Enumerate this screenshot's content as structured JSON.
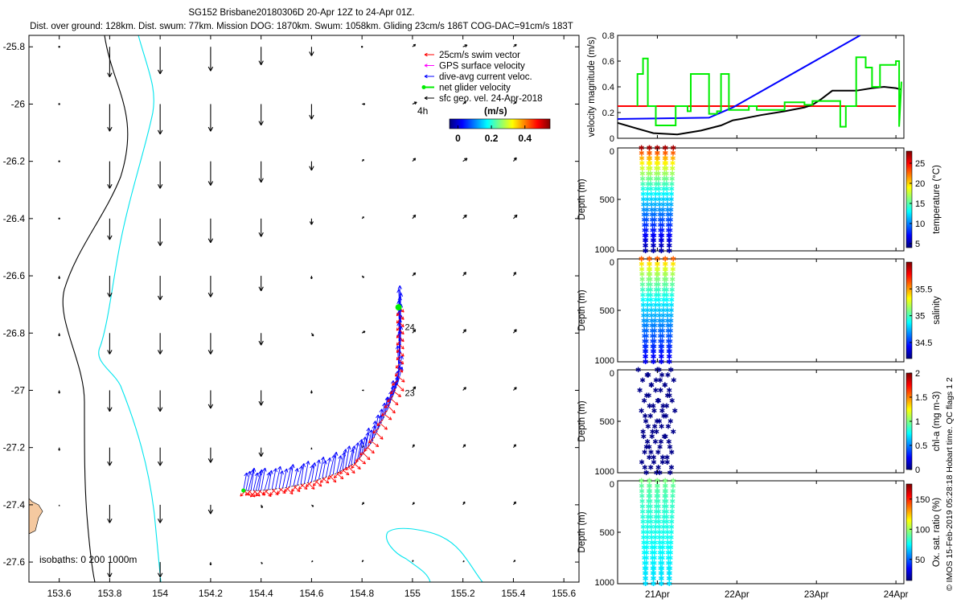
{
  "header": {
    "title": "SG152 Brisbane20180306D 20-Apr 12Z to 24-Apr 01Z.",
    "subtitle": "Dist. over ground: 128km. Dist. swum: 77km. Mission DOG: 1870km. Swum: 1058km. Gliding 23cm/s 186T COG-DAC=91cm/s 183T"
  },
  "credit": "© IMOS 15-Feb-2019 05:28:18 Hobart time. QC flags 1  2",
  "colors": {
    "swim": "#ff0000",
    "gps": "#ff00ff",
    "dac": "#0000ff",
    "net": "#00ee00",
    "sfc": "#000000",
    "isobath_200": "#00e5ee",
    "isobath_1000": "#000000",
    "land": "#f5c9a0"
  },
  "chart_data": [
    {
      "type": "map-quiver",
      "title": "Glider track and velocities",
      "xlim": [
        153.48,
        155.66
      ],
      "ylim": [
        -27.67,
        -25.76
      ],
      "x_ticks": [
        153.6,
        153.8,
        154,
        154.2,
        154.4,
        154.6,
        154.8,
        155,
        155.2,
        155.4,
        155.6
      ],
      "y_ticks": [
        -25.8,
        -26,
        -26.2,
        -26.4,
        -26.6,
        -26.8,
        -27,
        -27.2,
        -27.4,
        -27.6
      ],
      "x_tick_labels": [
        "153.6",
        "153.8",
        "154",
        "154.2",
        "154.4",
        "154.6",
        "154.8",
        "155",
        "155.2",
        "155.4",
        "155.6"
      ],
      "y_tick_labels": [
        "-25.8",
        "-26",
        "-26.2",
        "-26.4",
        "-26.6",
        "-26.8",
        "-27",
        "-27.2",
        "-27.4",
        "-27.6"
      ],
      "legend": [
        {
          "label": "25cm/s swim vector",
          "color": "#ff0000"
        },
        {
          "label": "GPS surface velocity",
          "color": "#ff00ff"
        },
        {
          "label": "dive-avg current veloc.",
          "color": "#0000ff"
        },
        {
          "label": "net glider velocity",
          "color": "#00ee00"
        },
        {
          "label": "sfc geo. vel. 24-Apr-2018",
          "color": "#000000"
        }
      ],
      "scale_label": "4h",
      "colorbar": {
        "label": "(m/s)",
        "ticks": [
          0,
          0.2,
          0.4
        ],
        "tick_labels": [
          "0",
          "0.2",
          "0.4"
        ],
        "range": [
          -0.05,
          0.55
        ]
      },
      "isobath_label": "isobaths: 0   200  1000m",
      "track": {
        "lon": [
          154.33,
          154.4,
          154.5,
          154.6,
          154.7,
          154.78,
          154.84,
          154.9,
          154.94,
          154.95,
          154.95,
          154.95
        ],
        "lat": [
          -27.35,
          -27.35,
          -27.34,
          -27.32,
          -27.29,
          -27.25,
          -27.18,
          -27.07,
          -26.98,
          -26.88,
          -26.79,
          -26.7
        ]
      },
      "day_labels": [
        {
          "text": "24",
          "lon": 154.97,
          "lat": -26.79
        },
        {
          "text": "23",
          "lon": 154.97,
          "lat": -27.02
        }
      ],
      "current_grid": {
        "lon": [
          153.6,
          153.8,
          154.0,
          154.2,
          154.4,
          154.6,
          154.8,
          155.0,
          155.2,
          155.4
        ],
        "lat": [
          -25.8,
          -26.0,
          -26.2,
          -26.4,
          -26.6,
          -26.8,
          -27.0,
          -27.2,
          -27.4,
          -27.6
        ],
        "u": [
          [
            0.0,
            0.0,
            0.0,
            0.0,
            0.0,
            0.0,
            0.0,
            0.05,
            0.07,
            0.05
          ],
          [
            0.0,
            0.0,
            0.0,
            0.0,
            0.0,
            0.0,
            0.05,
            0.07,
            0.05,
            0.05
          ],
          [
            0.0,
            0.0,
            0.0,
            0.0,
            0.0,
            0.0,
            0.03,
            0.05,
            0.07,
            0.05
          ],
          [
            0.0,
            0.0,
            0.0,
            0.0,
            0.0,
            0.0,
            0.03,
            0.05,
            0.06,
            0.06
          ],
          [
            0.0,
            0.0,
            0.0,
            0.0,
            0.0,
            0.0,
            0.03,
            0.05,
            0.05,
            0.04
          ],
          [
            0.0,
            0.0,
            0.0,
            0.0,
            0.0,
            0.03,
            0.05,
            0.05,
            0.05,
            0.05
          ],
          [
            0.0,
            0.0,
            0.0,
            0.0,
            0.0,
            0.0,
            0.03,
            0.05,
            0.05,
            0.05
          ],
          [
            0.0,
            0.0,
            0.0,
            0.0,
            0.0,
            0.0,
            0.03,
            0.03,
            0.04,
            0.04
          ],
          [
            0.0,
            0.0,
            0.0,
            0.0,
            0.02,
            0.03,
            0.03,
            0.03,
            0.03,
            0.04
          ],
          [
            0.0,
            0.0,
            0.0,
            0.0,
            0.02,
            0.02,
            0.02,
            0.01,
            0.02,
            0.03
          ]
        ],
        "v": [
          [
            0.0,
            -0.5,
            -0.45,
            -0.4,
            -0.3,
            -0.15,
            0.0,
            0.04,
            0.03,
            0.04
          ],
          [
            0.0,
            -0.45,
            -0.5,
            -0.45,
            -0.35,
            -0.25,
            0.0,
            0.03,
            0.04,
            0.04
          ],
          [
            0.0,
            -0.45,
            -0.45,
            -0.4,
            -0.35,
            -0.15,
            0.03,
            0.05,
            0.05,
            0.06
          ],
          [
            0.0,
            -0.35,
            -0.45,
            -0.4,
            -0.3,
            -0.1,
            0.03,
            0.06,
            0.06,
            0.06
          ],
          [
            -0.05,
            -0.35,
            -0.4,
            -0.35,
            -0.25,
            -0.05,
            -0.03,
            0.05,
            0.06,
            0.06
          ],
          [
            -0.05,
            -0.35,
            -0.35,
            -0.35,
            -0.2,
            -0.05,
            0.03,
            0.06,
            0.06,
            0.06
          ],
          [
            -0.05,
            -0.35,
            -0.35,
            -0.3,
            -0.25,
            -0.05,
            0.0,
            0.06,
            0.05,
            0.05
          ],
          [
            -0.05,
            -0.3,
            -0.3,
            -0.25,
            -0.15,
            -0.03,
            0.03,
            0.05,
            0.05,
            0.05
          ],
          [
            -0.02,
            -0.3,
            -0.3,
            -0.15,
            -0.05,
            -0.03,
            0.04,
            0.04,
            0.05,
            0.05
          ],
          [
            -0.02,
            -0.25,
            -0.25,
            -0.05,
            -0.03,
            0.02,
            0.03,
            0.03,
            0.02,
            0.03
          ]
        ]
      }
    },
    {
      "type": "line",
      "ylabel": "velocity magnitude (m/s)",
      "ylim": [
        0,
        0.8
      ],
      "y_ticks": [
        0,
        0.2,
        0.4,
        0.6,
        0.8
      ],
      "y_tick_labels": [
        "0",
        "0.2",
        "0.4",
        "0.6",
        "0.8"
      ],
      "xlim": [
        20.5,
        24.1
      ],
      "x_ticks": [
        21,
        22,
        23,
        24
      ],
      "x_tick_labels": [
        "21Apr",
        "22Apr",
        "23Apr",
        "24Apr"
      ],
      "series": [
        {
          "name": "swim",
          "color": "#ff0000",
          "x": [
            20.5,
            24.0
          ],
          "y": [
            0.25,
            0.25
          ]
        },
        {
          "name": "dive-avg",
          "color": "#0000ff",
          "x": [
            20.5,
            21.65,
            21.95,
            23.55
          ],
          "y": [
            0.15,
            0.16,
            0.24,
            0.8
          ]
        },
        {
          "name": "net",
          "color": "#000000",
          "x": [
            20.5,
            20.72,
            20.95,
            21.25,
            21.55,
            21.8,
            21.95,
            22.05,
            22.3,
            22.6,
            22.85,
            22.95,
            23.05,
            23.2,
            23.5,
            23.7,
            23.85,
            24.0,
            24.06
          ],
          "y": [
            0.12,
            0.08,
            0.04,
            0.03,
            0.06,
            0.1,
            0.14,
            0.15,
            0.18,
            0.21,
            0.24,
            0.26,
            0.3,
            0.37,
            0.37,
            0.39,
            0.4,
            0.39,
            0.38
          ]
        },
        {
          "name": "net glider velocity",
          "color": "#00ee00",
          "x": [
            20.75,
            20.75,
            20.82,
            20.82,
            20.88,
            20.88,
            20.98,
            20.98,
            21.23,
            21.23,
            21.38,
            21.38,
            21.42,
            21.42,
            21.65,
            21.65,
            21.75,
            21.75,
            21.8,
            21.8,
            21.9,
            21.9,
            22.15,
            22.15,
            22.25,
            22.25,
            22.6,
            22.6,
            22.85,
            22.85,
            22.95,
            22.95,
            23.3,
            23.3,
            23.37,
            23.37,
            23.5,
            23.5,
            23.62,
            23.62,
            23.7,
            23.7,
            23.8,
            23.8,
            24.0,
            24.0,
            24.04,
            24.04,
            24.07
          ],
          "y": [
            0.25,
            0.5,
            0.5,
            0.62,
            0.62,
            0.25,
            0.25,
            0.1,
            0.1,
            0.25,
            0.25,
            0.21,
            0.21,
            0.5,
            0.5,
            0.19,
            0.19,
            0.21,
            0.21,
            0.5,
            0.5,
            0.22,
            0.22,
            0.25,
            0.25,
            0.22,
            0.22,
            0.28,
            0.28,
            0.26,
            0.26,
            0.29,
            0.29,
            0.09,
            0.09,
            0.25,
            0.25,
            0.63,
            0.63,
            0.55,
            0.55,
            0.4,
            0.4,
            0.57,
            0.57,
            0.6,
            0.6,
            0.09,
            0.44
          ]
        }
      ]
    },
    {
      "type": "scatter",
      "ylabel": "Depth (m)",
      "ylim": [
        1000,
        0
      ],
      "y_tick_labels": [
        "0",
        "500",
        "1000"
      ],
      "colorbar": {
        "label": "temperature (°C)",
        "range": [
          4,
          28
        ],
        "ticks": [
          5,
          10,
          15,
          20,
          25
        ],
        "tick_labels": [
          "5",
          "10",
          "15",
          "20",
          "25"
        ]
      },
      "profiles": {
        "dive_times": [
          20.95,
          21.05,
          21.15,
          21.25
        ],
        "max_depth": 1000,
        "surface_value": 27,
        "bottom_value": 5,
        "kind": "gradient"
      }
    },
    {
      "type": "scatter",
      "ylabel": "Depth (m)",
      "ylim": [
        1000,
        0
      ],
      "y_tick_labels": [
        "0",
        "500",
        "1000"
      ],
      "colorbar": {
        "label": "salinity",
        "range": [
          34.2,
          36.0
        ],
        "ticks": [
          34.5,
          35,
          35.5
        ],
        "tick_labels": [
          "34.5",
          "35",
          "35.5"
        ]
      },
      "profiles": {
        "dive_times": [
          20.95,
          21.05,
          21.15,
          21.25
        ],
        "max_depth": 1000,
        "surface_value": 35.6,
        "bottom_value": 34.4,
        "kind": "gradient"
      }
    },
    {
      "type": "scatter",
      "ylabel": "Depth (m)",
      "ylim": [
        1000,
        0
      ],
      "y_tick_labels": [
        "0",
        "500",
        "1000"
      ],
      "colorbar": {
        "label": "chl-a (mg m-3)",
        "range": [
          0,
          2
        ],
        "ticks": [
          0,
          0.5,
          1,
          1.5,
          2
        ],
        "tick_labels": [
          "0",
          "0.5",
          "1",
          "1.5",
          "2"
        ]
      },
      "profiles": {
        "dive_times": [
          20.95,
          21.05,
          21.15,
          21.25
        ],
        "max_depth": 1000,
        "surface_value": 0.02,
        "bottom_value": 0.02,
        "kind": "scattered"
      }
    },
    {
      "type": "scatter",
      "ylabel": "Depth (m)",
      "ylim": [
        1000,
        0
      ],
      "y_tick_labels": [
        "0",
        "500",
        "1000"
      ],
      "colorbar": {
        "label": "Ox. sat. ratio (%)",
        "range": [
          15,
          175
        ],
        "ticks": [
          50,
          100,
          150
        ],
        "tick_labels": [
          "50",
          "100",
          "150"
        ]
      },
      "profiles": {
        "dive_times": [
          20.95,
          21.05,
          21.15,
          21.25
        ],
        "max_depth": 1000,
        "surface_value": 95,
        "bottom_value": 70,
        "kind": "gradient"
      }
    }
  ]
}
